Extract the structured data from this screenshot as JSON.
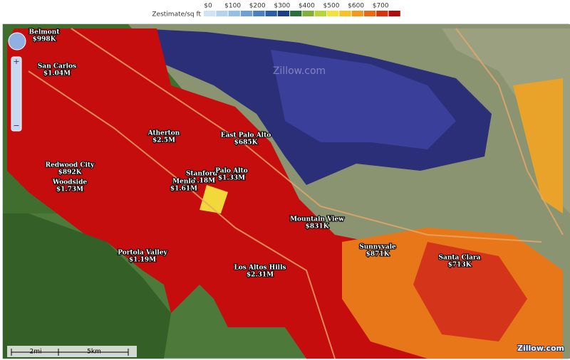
{
  "legend": {
    "title": "Zestimate/sq ft",
    "ticks": [
      "$0",
      "$100",
      "$200",
      "$300",
      "$400",
      "$500",
      "$600",
      "$700"
    ],
    "colors": [
      "#cfe3f5",
      "#b3d3ef",
      "#94bfe6",
      "#6e9fd6",
      "#4a7fc0",
      "#2c5ea5",
      "#1b3f86",
      "#2a6e3a",
      "#7fb13a",
      "#b9d43a",
      "#f2e33a",
      "#f5c22a",
      "#f39a1e",
      "#ea6a14",
      "#d8320e",
      "#b30a0a"
    ]
  },
  "places": [
    {
      "name": "Belmont",
      "price": "$998K"
    },
    {
      "name": "San Carlos",
      "price": "$1.04M"
    },
    {
      "name": "Atherton",
      "price": "$2.5M"
    },
    {
      "name": "East Palo Alto",
      "price": "$685K"
    },
    {
      "name": "Redwood City",
      "price": "$892K"
    },
    {
      "name": "Woodside",
      "price": "$1.73M"
    },
    {
      "name": "Stanford",
      "price": "$1.18M"
    },
    {
      "name": "Menlo",
      "price": "$1.61M"
    },
    {
      "name": "Palo Alto",
      "price": "$1.33M"
    },
    {
      "name": "Mountain View",
      "price": "$831K"
    },
    {
      "name": "Sunnyvale",
      "price": "$871K"
    },
    {
      "name": "Santa Clara",
      "price": "$713K"
    },
    {
      "name": "Portola Valley",
      "price": "$1.19M"
    },
    {
      "name": "Los Altos Hills",
      "price": "$2.31M"
    }
  ],
  "scale": {
    "miles": "2mi",
    "km": "5km"
  },
  "watermark": "Zillow.com",
  "brand": "Zillow.com"
}
